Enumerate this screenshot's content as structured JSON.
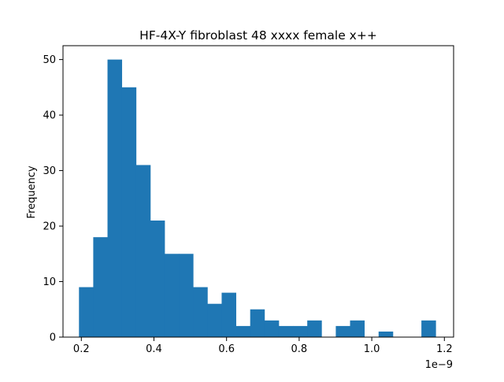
{
  "chart_data": {
    "type": "bar",
    "title": "HF-4X-Y fibroblast 48 xxxx female x++",
    "xlabel": "",
    "ylabel": "Frequency",
    "x_offset_label": "1e−9",
    "x_scale_factor": 1e-09,
    "xlim": [
      0.1495,
      1.2254
    ],
    "ylim": [
      0,
      52.5
    ],
    "x_ticks": [
      0.2,
      0.4,
      0.6,
      0.8,
      1.0,
      1.2
    ],
    "x_tick_labels": [
      "0.2",
      "0.4",
      "0.6",
      "0.8",
      "1.0",
      "1.2"
    ],
    "y_ticks": [
      0,
      10,
      20,
      30,
      40,
      50
    ],
    "y_tick_labels": [
      "0",
      "10",
      "20",
      "30",
      "40",
      "50"
    ],
    "grid": false,
    "bar_color": "#1f77b4",
    "bins": {
      "x_start": 0.1935,
      "bin_width": 0.0393,
      "counts": [
        9,
        18,
        50,
        45,
        31,
        21,
        15,
        15,
        9,
        6,
        8,
        2,
        5,
        3,
        2,
        2,
        3,
        0,
        2,
        3,
        0,
        1,
        0,
        0,
        3
      ]
    }
  }
}
